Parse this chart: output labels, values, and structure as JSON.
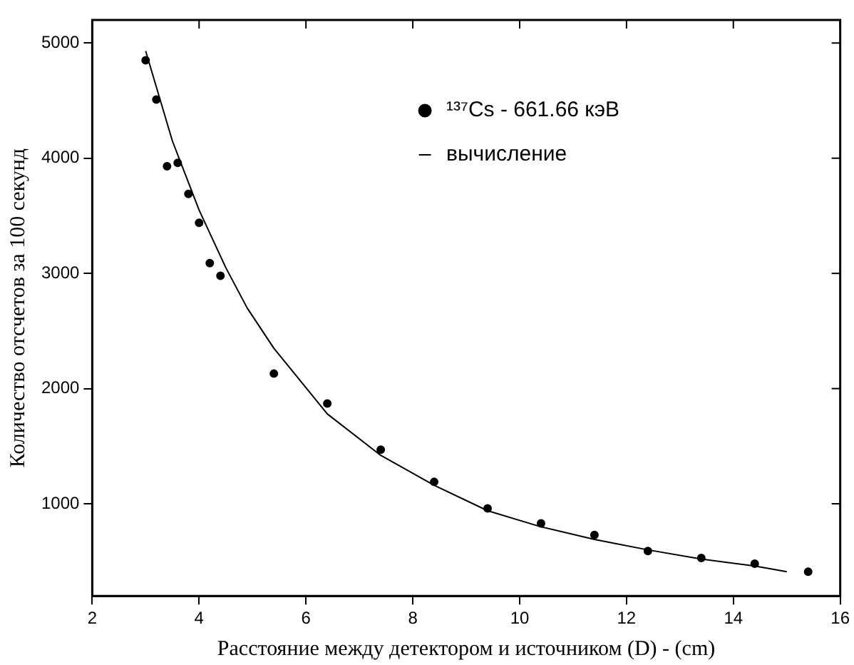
{
  "chart_data": {
    "type": "scatter",
    "xlabel": "Расстояние между детектором и источником (D) - (cm)",
    "ylabel": "Количество отсчетов за 100 секунд",
    "xlim": [
      2,
      16
    ],
    "xticks": [
      2,
      4,
      6,
      8,
      10,
      12,
      14,
      16
    ],
    "ylim": [
      200,
      5200
    ],
    "yticks": [
      1000,
      2000,
      3000,
      4000,
      5000
    ],
    "grid": false,
    "legend": "top right",
    "series": [
      {
        "name": "¹³⁷Cs - 661.66 кэВ",
        "type": "scatter",
        "marker": "circle",
        "color": "#000000",
        "x": [
          3.0,
          3.2,
          3.4,
          3.6,
          3.8,
          4.0,
          4.2,
          4.4,
          5.4,
          6.4,
          7.4,
          8.4,
          9.4,
          10.4,
          11.4,
          12.4,
          13.4,
          14.4,
          15.4
        ],
        "values": [
          4850,
          4510,
          3930,
          3960,
          3690,
          3440,
          3090,
          2980,
          2130,
          1870,
          1470,
          1190,
          960,
          830,
          730,
          590,
          530,
          480,
          410
        ]
      },
      {
        "name": "вычисление",
        "type": "line",
        "marker": "none",
        "line_style": "solid",
        "color": "#000000",
        "x": [
          3,
          3.5,
          4,
          4.5,
          4.9,
          5.4,
          6.4,
          7.4,
          8.4,
          9.4,
          10.4,
          11.4,
          12.4,
          13.4,
          14.4,
          15
        ],
        "values": [
          4930,
          4150,
          3550,
          3050,
          2700,
          2350,
          1780,
          1420,
          1160,
          940,
          800,
          690,
          600,
          520,
          460,
          410
        ]
      }
    ]
  }
}
